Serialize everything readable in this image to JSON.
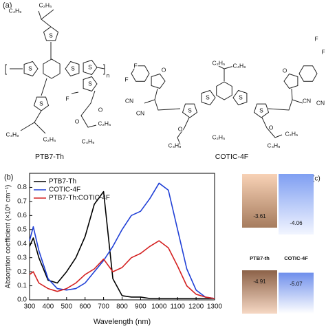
{
  "panel_a": {
    "label": "(a)",
    "structures": [
      {
        "name": "PTB7-Th",
        "atoms": [
          "C₂H₅",
          "C₄H₉",
          "S",
          "S",
          "S",
          "S",
          "S",
          "n",
          "F",
          "O",
          "O",
          "S",
          "C₄H₉",
          "C₂H₅",
          "C₂H₅",
          "C₄H₉"
        ]
      },
      {
        "name": "COTIC-4F",
        "atoms": [
          "F",
          "F",
          "O",
          "CN",
          "CN",
          "C₂H₅",
          "C₄H₉",
          "S",
          "S",
          "S",
          "S",
          "O",
          "O",
          "C₂H₅",
          "C₄H₉",
          "C₂H₅",
          "C₄H₉",
          "O",
          "F",
          "F",
          "CN",
          "CN"
        ]
      }
    ]
  },
  "chart_data": [
    {
      "type": "line",
      "panel_label": "(b)",
      "x_label": "Wavelength (nm)",
      "y_label": "Absorption coefficient (×10⁵ cm⁻¹)",
      "x": [
        300,
        320,
        350,
        400,
        450,
        500,
        550,
        600,
        650,
        700,
        750,
        800,
        850,
        900,
        950,
        1000,
        1050,
        1100,
        1150,
        1200,
        1250,
        1300
      ],
      "series": [
        {
          "name": "PTB7-Th",
          "color": "#000000",
          "values": [
            0.38,
            0.44,
            0.3,
            0.14,
            0.12,
            0.2,
            0.3,
            0.45,
            0.68,
            0.77,
            0.15,
            0.03,
            0.02,
            0.02,
            0.01,
            0.01,
            0.01,
            0.01,
            0.01,
            0.01,
            0.01,
            0.01
          ]
        },
        {
          "name": "COTIC-4F",
          "color": "#1f3fd6",
          "values": [
            0.42,
            0.52,
            0.35,
            0.15,
            0.08,
            0.07,
            0.08,
            0.12,
            0.2,
            0.28,
            0.38,
            0.5,
            0.6,
            0.63,
            0.72,
            0.83,
            0.78,
            0.5,
            0.22,
            0.07,
            0.02,
            0.01
          ]
        },
        {
          "name": "PTB7-Th:COTIC-4F",
          "color": "#d42020",
          "values": [
            0.18,
            0.2,
            0.12,
            0.08,
            0.06,
            0.08,
            0.12,
            0.18,
            0.22,
            0.29,
            0.2,
            0.23,
            0.3,
            0.33,
            0.38,
            0.42,
            0.37,
            0.24,
            0.1,
            0.04,
            0.02,
            0.01
          ]
        }
      ],
      "xlim": [
        300,
        1300
      ],
      "xticks": [
        300,
        400,
        500,
        600,
        700,
        800,
        900,
        1000,
        1100,
        1200,
        1300
      ],
      "ylim": [
        0,
        0.9
      ],
      "yticks": [
        {
          "value": 0,
          "label": "0.0"
        },
        0.1,
        0.2,
        0.3,
        0.4,
        0.5,
        0.6,
        0.7,
        0.8
      ],
      "legend": "upper left",
      "grid": false
    },
    {
      "type": "energy-level",
      "panel_label": "(c)",
      "categories": [
        "PTB7-th",
        "COTIC-4F"
      ],
      "colors": [
        "#c08a66",
        "#5f86ee"
      ],
      "series": [
        {
          "values": [
            -3.61,
            -4.06
          ]
        },
        {
          "values": [
            -4.91,
            -5.07
          ]
        }
      ]
    }
  ]
}
